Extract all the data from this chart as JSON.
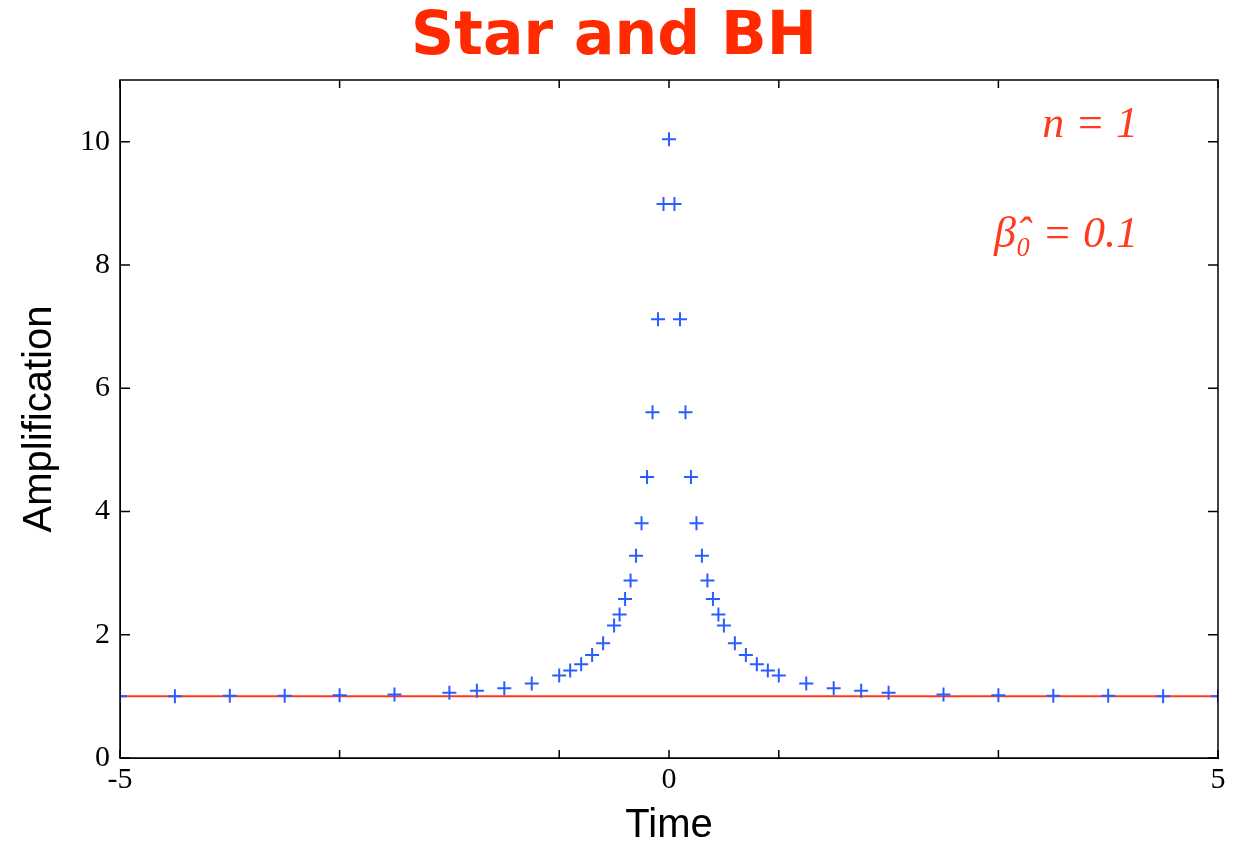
{
  "chart_data": {
    "type": "scatter",
    "title": "Star and BH",
    "xlabel": "Time",
    "ylabel": "Amplification",
    "xlim": [
      -5,
      5
    ],
    "ylim": [
      0,
      11
    ],
    "xticks": [
      -5,
      {
        "value": -3,
        "label": null
      },
      {
        "value": -1,
        "label": null
      },
      0,
      {
        "value": 1,
        "label": null
      },
      {
        "value": 3,
        "label": null
      },
      5
    ],
    "yticks": [
      0,
      2,
      4,
      6,
      8,
      10
    ],
    "grid": false,
    "legend": false,
    "marker": "cross",
    "series": [
      {
        "color": "#2a5cff",
        "x": [
          -5,
          -4.5,
          -4,
          -3.5,
          -3,
          -2.5,
          -2,
          -1.75,
          -1.5,
          -1.25,
          -1,
          -0.9,
          -0.8,
          -0.7,
          -0.6,
          -0.5,
          -0.45,
          -0.4,
          -0.35,
          -0.3,
          -0.25,
          -0.2,
          -0.15,
          -0.1,
          -0.05,
          0,
          0.05,
          0.1,
          0.15,
          0.2,
          0.25,
          0.3,
          0.35,
          0.4,
          0.45,
          0.5,
          0.6,
          0.7,
          0.8,
          0.9,
          1,
          1.25,
          1.5,
          1.75,
          2,
          2.5,
          3,
          3.5,
          4,
          4.5,
          5
        ],
        "values": [
          1.0,
          1.0,
          1.01,
          1.01,
          1.02,
          1.03,
          1.06,
          1.09,
          1.13,
          1.21,
          1.34,
          1.42,
          1.52,
          1.67,
          1.86,
          2.15,
          2.33,
          2.58,
          2.88,
          3.28,
          3.81,
          4.56,
          5.61,
          7.12,
          8.99,
          10.04,
          8.99,
          7.12,
          5.61,
          4.56,
          3.81,
          3.28,
          2.88,
          2.58,
          2.33,
          2.15,
          1.86,
          1.67,
          1.52,
          1.42,
          1.34,
          1.21,
          1.13,
          1.09,
          1.06,
          1.03,
          1.02,
          1.01,
          1.01,
          1.0,
          1.0
        ]
      }
    ],
    "ref_lines": [
      {
        "axis": "y",
        "value": 1,
        "color": "#ff3a1f"
      }
    ],
    "annotations": [
      "n = 1",
      "β̂₀ = 0.1"
    ]
  }
}
